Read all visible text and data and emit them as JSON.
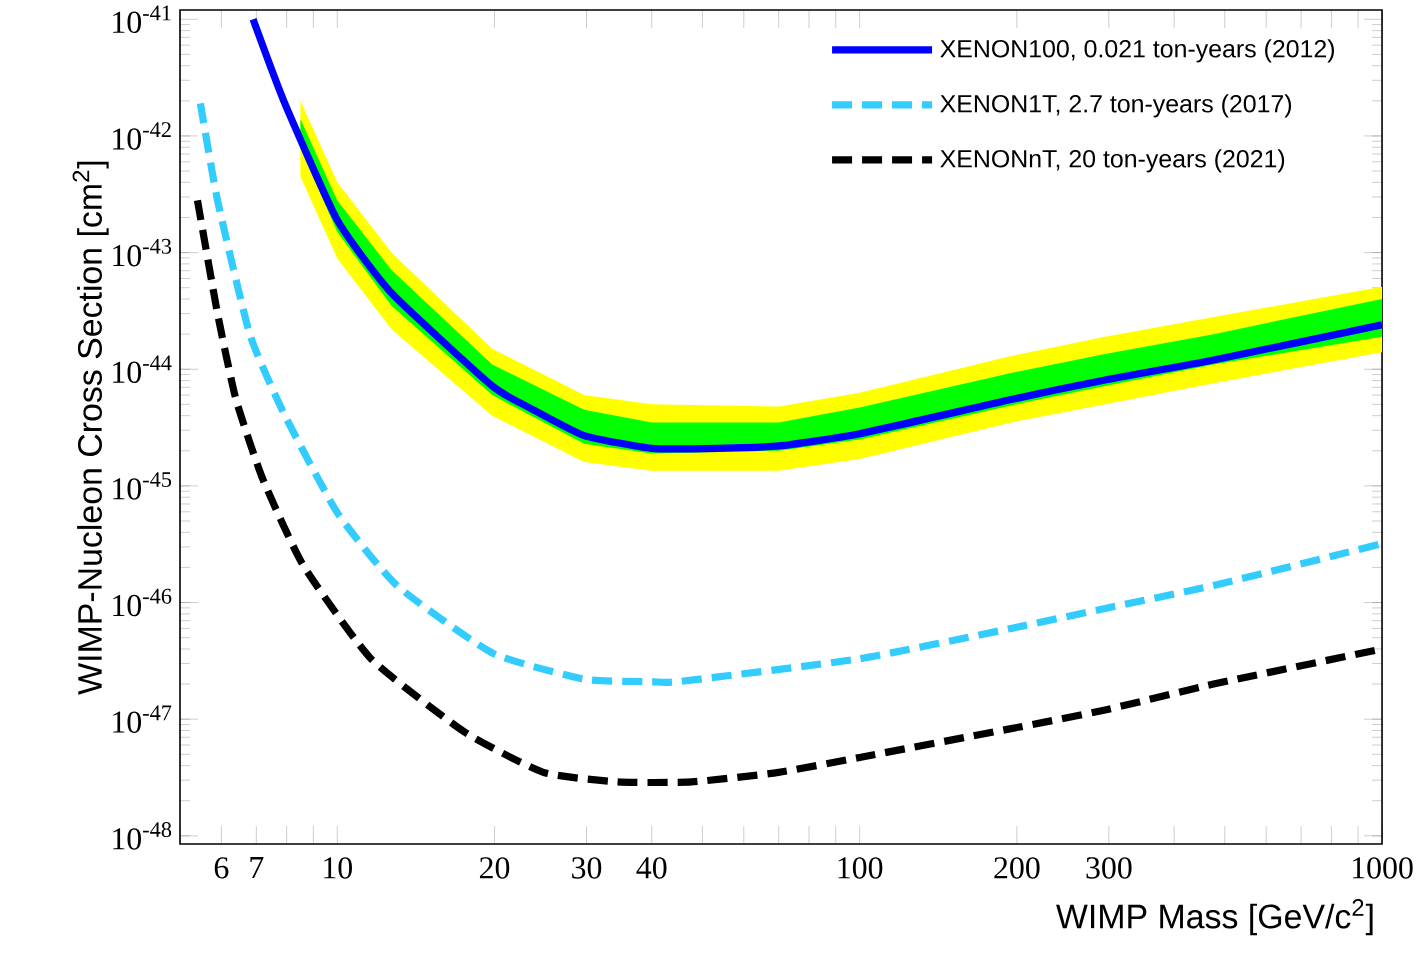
{
  "chart_data": {
    "type": "line",
    "log": "xy",
    "xlabel": "WIMP Mass [GeV/c$^{2}$]",
    "ylabel": "WIMP-Nucleon Cross Section [cm$^{2}$]",
    "xlim": [
      5,
      1000
    ],
    "ylim": [
      8.5e-49,
      1.2e-41
    ],
    "xticks": [
      {
        "value": 5,
        "label": null
      },
      {
        "value": 6,
        "label": "6"
      },
      {
        "value": 7,
        "label": "7"
      },
      {
        "value": 8,
        "label": null
      },
      {
        "value": 9,
        "label": null
      },
      {
        "value": 10,
        "label": "10"
      },
      {
        "value": 20,
        "label": "20"
      },
      {
        "value": 30,
        "label": "30"
      },
      {
        "value": 40,
        "label": "40"
      },
      {
        "value": 50,
        "label": null
      },
      {
        "value": 60,
        "label": null
      },
      {
        "value": 70,
        "label": null
      },
      {
        "value": 80,
        "label": null
      },
      {
        "value": 90,
        "label": null
      },
      {
        "value": 100,
        "label": "100"
      },
      {
        "value": 200,
        "label": "200"
      },
      {
        "value": 300,
        "label": "300"
      },
      {
        "value": 400,
        "label": null
      },
      {
        "value": 500,
        "label": null
      },
      {
        "value": 600,
        "label": null
      },
      {
        "value": 700,
        "label": null
      },
      {
        "value": 800,
        "label": null
      },
      {
        "value": 900,
        "label": null
      },
      {
        "value": 1000,
        "label": "1000"
      }
    ],
    "yticks": [
      {
        "value": 1e-48,
        "label": "10$^{-48}$"
      },
      {
        "value": 1e-47,
        "label": "10$^{-47}$"
      },
      {
        "value": 1e-46,
        "label": "10$^{-46}$"
      },
      {
        "value": 1e-45,
        "label": "10$^{-45}$"
      },
      {
        "value": 1e-44,
        "label": "10$^{-44}$"
      },
      {
        "value": 1e-43,
        "label": "10$^{-43}$"
      },
      {
        "value": 1e-42,
        "label": "10$^{-42}$"
      },
      {
        "value": 1e-41,
        "label": "10$^{-41}$"
      }
    ],
    "legend": "top right",
    "series": [
      {
        "type": "line",
        "color": "#ffff00",
        "x": [
          8.5,
          10,
          12.7,
          19.8,
          29.7,
          40,
          70,
          100,
          195,
          295,
          476,
          1000
        ],
        "values": [
          null,
          null,
          null,
          null,
          null,
          null,
          null,
          null,
          null,
          null,
          null,
          null
        ],
        "upper": [
          2e-42,
          4e-43,
          1e-43,
          1.5e-44,
          6e-45,
          5e-45,
          4.8e-45,
          6.3e-45,
          1.3e-44,
          1.9e-44,
          2.8e-44,
          5.1e-44
        ],
        "lower": [
          4.5e-43,
          8.9e-44,
          2.2e-44,
          4e-45,
          1.6e-45,
          1.35e-45,
          1.35e-45,
          1.7e-45,
          3.5e-45,
          5e-45,
          7.6e-45,
          1.4e-44
        ]
      },
      {
        "type": "line",
        "color": "#00ff00",
        "x": [
          8.5,
          10,
          12.7,
          19.8,
          29.7,
          40,
          70,
          100,
          195,
          295,
          476,
          1000
        ],
        "values": [
          null,
          null,
          null,
          null,
          null,
          null,
          null,
          null,
          null,
          null,
          null,
          null
        ],
        "upper": [
          1.4e-42,
          2.8e-43,
          7.1e-44,
          1.1e-44,
          4.5e-45,
          3.5e-45,
          3.5e-45,
          4.7e-45,
          9.3e-45,
          1.35e-44,
          2e-44,
          4e-44
        ],
        "lower": [
          7.9e-43,
          1.5e-43,
          3.5e-44,
          6e-45,
          2.3e-45,
          1.9e-45,
          2e-45,
          2.5e-45,
          4.9e-45,
          7.2e-45,
          1.1e-44,
          1.9e-44
        ]
      },
      {
        "name": "XENON100, 0.021 ton-years (2012)",
        "color": "#0000ff",
        "line_style": "solid",
        "x": [
          6.9,
          7.9,
          10,
          12.7,
          19.8,
          23.5,
          29.7,
          40,
          53.6,
          70,
          100,
          195,
          295,
          476,
          1000
        ],
        "values": [
          1e-41,
          2e-42,
          1.9e-43,
          4.5e-44,
          7.2e-45,
          4.6e-45,
          2.7e-45,
          2.1e-45,
          2.1e-45,
          2.2e-45,
          2.8e-45,
          5.5e-45,
          8.1e-45,
          1.2e-44,
          2.4e-44
        ]
      },
      {
        "name": "XENON1T, 2.7 ton-years (2017)",
        "color": "#33ccff",
        "line_style": "dashed",
        "x": [
          5.47,
          5.9,
          6.8,
          7.9,
          10,
          13.0,
          19.8,
          29.7,
          40,
          45,
          100,
          195,
          295,
          476,
          1000
        ],
        "values": [
          1.9e-42,
          2.8e-43,
          2e-44,
          4.2e-45,
          5.9e-46,
          1.4e-46,
          3.7e-47,
          2.2e-47,
          2.1e-47,
          2.1e-47,
          3.3e-47,
          6e-47,
          8.9e-47,
          1.4e-46,
          3.2e-46
        ]
      },
      {
        "name": "XENONnT, 20 ton-years (2021)",
        "color": "#000000",
        "line_style": "dashed",
        "x": [
          5.4,
          5.9,
          6.4,
          7.2,
          8.6,
          11.6,
          17.5,
          24.8,
          34.4,
          47.7,
          70,
          100,
          195,
          295,
          476,
          1000
        ],
        "values": [
          2.8e-43,
          3e-44,
          5.5e-45,
          1.15e-45,
          2.1e-46,
          3.3e-47,
          7.8e-48,
          3.5e-48,
          2.9e-48,
          2.9e-48,
          3.5e-48,
          4.7e-48,
          8.3e-48,
          1.2e-47,
          2e-47,
          4e-47
        ]
      }
    ]
  }
}
